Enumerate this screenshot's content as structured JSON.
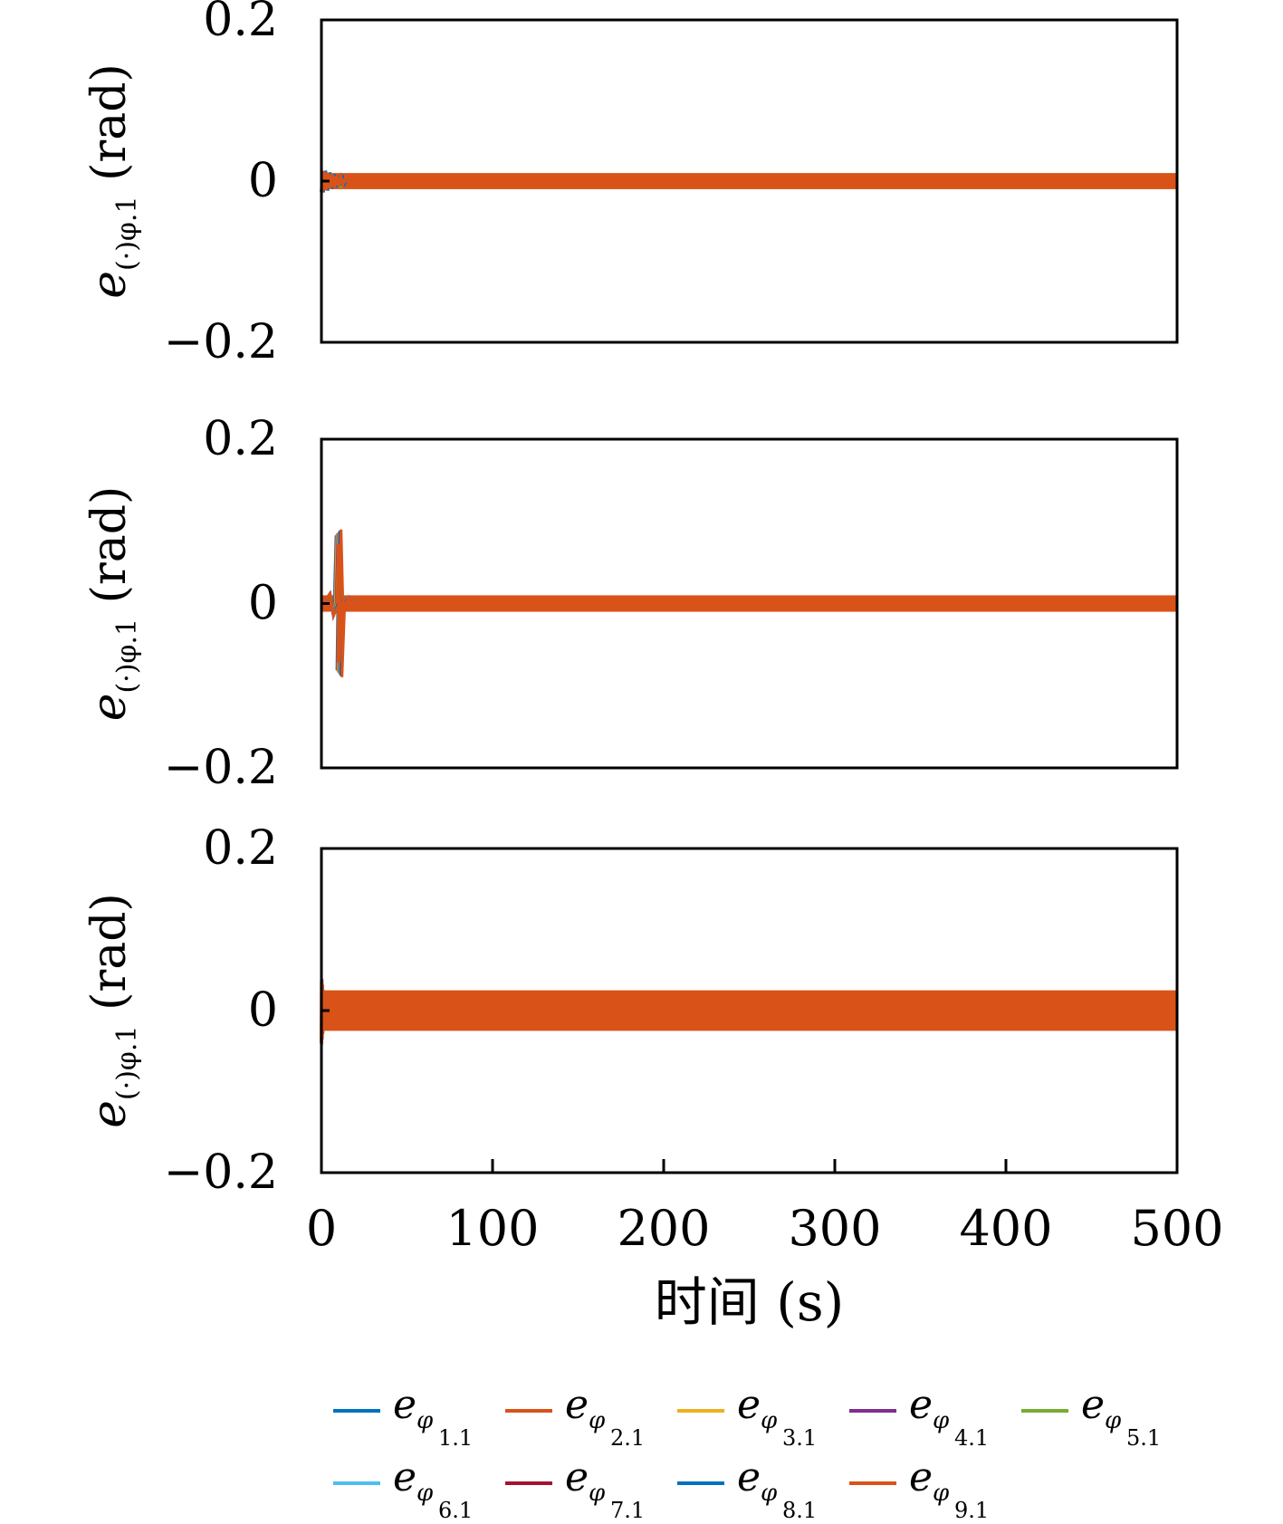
{
  "chart_data": {
    "type": "line",
    "panels": [
      {
        "ylabel": {
          "symbol": "e",
          "subscript": "(·)φ.1",
          "unit": "(rad)"
        },
        "ylim": [
          -0.2,
          0.2
        ],
        "yticks": [
          "0.2",
          "0",
          "−0.2"
        ],
        "xlim": [
          0,
          500
        ],
        "band_halfwidth": 0.01,
        "transient": {
          "t_end": 15,
          "peak": 0.015
        }
      },
      {
        "ylabel": {
          "symbol": "e",
          "subscript": "(·)φ.1",
          "unit": "(rad)"
        },
        "ylim": [
          -0.2,
          0.2
        ],
        "yticks": [
          "0.2",
          "0",
          "−0.2"
        ],
        "xlim": [
          0,
          500
        ],
        "band_halfwidth": 0.01,
        "transient": {
          "t_spike": 10,
          "peak": 0.09,
          "trough": -0.09
        }
      },
      {
        "ylabel": {
          "symbol": "e",
          "subscript": "(·)φ.1",
          "unit": "(rad)"
        },
        "ylim": [
          -0.2,
          0.2
        ],
        "yticks": [
          "0.2",
          "0",
          "−0.2"
        ],
        "xlim": [
          0,
          500
        ],
        "band_halfwidth": 0.025,
        "transient": {
          "t_end": 2,
          "peak": 0.045
        }
      }
    ],
    "xticks": [
      "0",
      "100",
      "200",
      "300",
      "400",
      "500"
    ],
    "xtick_values": [
      0,
      100,
      200,
      300,
      400,
      500
    ],
    "xlabel": "时间 (s)",
    "series": [
      {
        "symbol": "e",
        "sub": "φ",
        "index": "1.1",
        "color": "#0072BD"
      },
      {
        "symbol": "e",
        "sub": "φ",
        "index": "2.1",
        "color": "#D95319"
      },
      {
        "symbol": "e",
        "sub": "φ",
        "index": "3.1",
        "color": "#EDB120"
      },
      {
        "symbol": "e",
        "sub": "φ",
        "index": "4.1",
        "color": "#7E2F8E"
      },
      {
        "symbol": "e",
        "sub": "φ",
        "index": "5.1",
        "color": "#77AC30"
      },
      {
        "symbol": "e",
        "sub": "φ",
        "index": "6.1",
        "color": "#4DBEEE"
      },
      {
        "symbol": "e",
        "sub": "φ",
        "index": "7.1",
        "color": "#A2142F"
      },
      {
        "symbol": "e",
        "sub": "φ",
        "index": "8.1",
        "color": "#0072BD"
      },
      {
        "symbol": "e",
        "sub": "φ",
        "index": "9.1",
        "color": "#D95319"
      }
    ],
    "legend_position": "bottom",
    "grid": false
  }
}
